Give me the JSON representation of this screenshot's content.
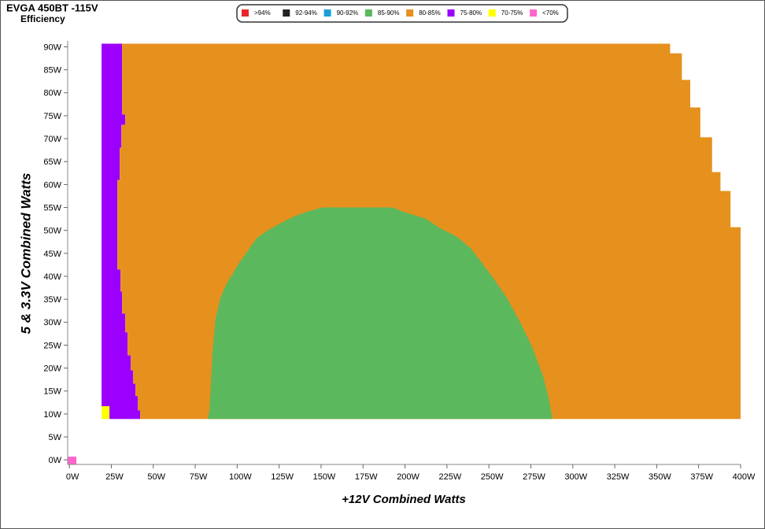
{
  "chart_data": {
    "type": "region-map",
    "title": "EVGA 450BT -115V",
    "subtitle": "Efficiency",
    "xlabel": "+12V Combined Watts",
    "ylabel": "5 & 3.3V Combined Watts",
    "legend": "top",
    "xlim": [
      -1,
      400
    ],
    "ylim": [
      -1,
      91
    ],
    "xticks": [
      {
        "value": 0,
        "label": "0W"
      },
      {
        "value": 25,
        "label": "25W"
      },
      {
        "value": 50,
        "label": "50W"
      },
      {
        "value": 75,
        "label": "75W"
      },
      {
        "value": 100,
        "label": "100W"
      },
      {
        "value": 125,
        "label": "125W"
      },
      {
        "value": 150,
        "label": "150W"
      },
      {
        "value": 175,
        "label": "175W"
      },
      {
        "value": 200,
        "label": "200W"
      },
      {
        "value": 225,
        "label": "225W"
      },
      {
        "value": 250,
        "label": "250W"
      },
      {
        "value": 275,
        "label": "275W"
      },
      {
        "value": 300,
        "label": "300W"
      },
      {
        "value": 325,
        "label": "325W"
      },
      {
        "value": 350,
        "label": "350W"
      },
      {
        "value": 375,
        "label": "375W"
      },
      {
        "value": 400,
        "label": "400W"
      }
    ],
    "yticks": [
      {
        "value": 0,
        "label": "0W"
      },
      {
        "value": 5,
        "label": "5W"
      },
      {
        "value": 10,
        "label": "10W"
      },
      {
        "value": 15,
        "label": "15W"
      },
      {
        "value": 20,
        "label": "20W"
      },
      {
        "value": 25,
        "label": "25W"
      },
      {
        "value": 30,
        "label": "30W"
      },
      {
        "value": 35,
        "label": "35W"
      },
      {
        "value": 40,
        "label": "40W"
      },
      {
        "value": 45,
        "label": "45W"
      },
      {
        "value": 50,
        "label": "50W"
      },
      {
        "value": 55,
        "label": "55W"
      },
      {
        "value": 60,
        "label": "60W"
      },
      {
        "value": 65,
        "label": "65W"
      },
      {
        "value": 70,
        "label": "70W"
      },
      {
        "value": 75,
        "label": "75W"
      },
      {
        "value": 80,
        "label": "80W"
      },
      {
        "value": 85,
        "label": "85W"
      },
      {
        "value": 90,
        "label": "90W"
      }
    ],
    "series": [
      {
        "name": ">94%",
        "color": "#e8262b"
      },
      {
        "name": "92-94%",
        "color": "#222222"
      },
      {
        "name": "90-92%",
        "color": "#1a9ed8"
      },
      {
        "name": "85-90%",
        "color": "#5cb85c",
        "x": [
          82.5,
          83.5,
          85.3,
          87.2,
          90,
          93.3,
          96.6,
          100.8,
          106.4,
          111.6,
          118.6,
          126.1,
          133.6,
          142.6,
          151,
          192.3,
          201.2,
          212,
          221.3,
          230.7,
          239.2,
          245.7,
          253.2,
          260.7,
          268.2,
          275.7,
          282.3,
          285.6,
          287.9
        ],
        "y": [
          8.9,
          10.8,
          23.5,
          30.9,
          35.3,
          38.1,
          40.1,
          42.7,
          45.6,
          48.3,
          50.1,
          51.6,
          53,
          54.2,
          55,
          55,
          53.8,
          52.6,
          50.4,
          48.7,
          46.1,
          43,
          39.3,
          35.3,
          30.3,
          24.7,
          18.2,
          13.5,
          8.9
        ]
      },
      {
        "name": "80-85%",
        "color": "#e6901e",
        "x": [
          31.4,
          358,
          358,
          365,
          365,
          370,
          370,
          376,
          376,
          383,
          383,
          388,
          388,
          394,
          394,
          400,
          400,
          42.2,
          42.2,
          40.8,
          40.8,
          39.4,
          39.4,
          38,
          38,
          36.6,
          36.6,
          34.7,
          34.7,
          33.3,
          33.3,
          31.4,
          31.4,
          30.5,
          30.5,
          28.6,
          28.6,
          30,
          30,
          31,
          31,
          33.3,
          33.3,
          31.4
        ],
        "y": [
          90.7,
          90.7,
          88.6,
          88.6,
          82.8,
          82.8,
          76.8,
          76.8,
          70.3,
          70.3,
          62.7,
          62.7,
          58.6,
          58.6,
          50.7,
          50.7,
          8.9,
          8.9,
          10.8,
          10.8,
          13.9,
          13.9,
          16.6,
          16.6,
          19.5,
          19.5,
          22.8,
          22.8,
          27.8,
          27.8,
          31.9,
          31.9,
          36.7,
          36.7,
          41.5,
          41.5,
          61,
          61,
          68,
          68,
          73,
          73,
          75.3,
          75.3
        ]
      },
      {
        "name": "75-80%",
        "color": "#9b00ff",
        "x": [
          19.2,
          31.4,
          31.4,
          33.3,
          33.3,
          31,
          31,
          30,
          30,
          28.6,
          28.6,
          30.5,
          30.5,
          31.4,
          31.4,
          33.3,
          33.3,
          34.7,
          34.7,
          36.6,
          36.6,
          38,
          38,
          39.4,
          39.4,
          40.8,
          40.8,
          42.2,
          42.2,
          23.9,
          23.9,
          19.2
        ],
        "y": [
          90.7,
          90.7,
          75.3,
          75.3,
          73,
          73,
          68,
          68,
          61,
          61,
          41.5,
          41.5,
          36.7,
          36.7,
          31.9,
          31.9,
          27.8,
          27.8,
          22.8,
          22.8,
          19.5,
          19.5,
          16.6,
          16.6,
          13.9,
          13.9,
          10.8,
          10.8,
          8.9,
          8.9,
          11.7,
          11.7
        ]
      },
      {
        "name": "70-75%",
        "color": "#ffff00",
        "x": [
          19.2,
          23.9,
          23.9,
          19.2
        ],
        "y": [
          8.9,
          8.9,
          11.7,
          11.7
        ]
      },
      {
        "name": "<70%",
        "color": "#ff66cc",
        "x": [
          -1,
          4.2,
          4.2,
          -1
        ],
        "y": [
          -1,
          -1,
          0.7,
          0.7
        ]
      }
    ]
  }
}
